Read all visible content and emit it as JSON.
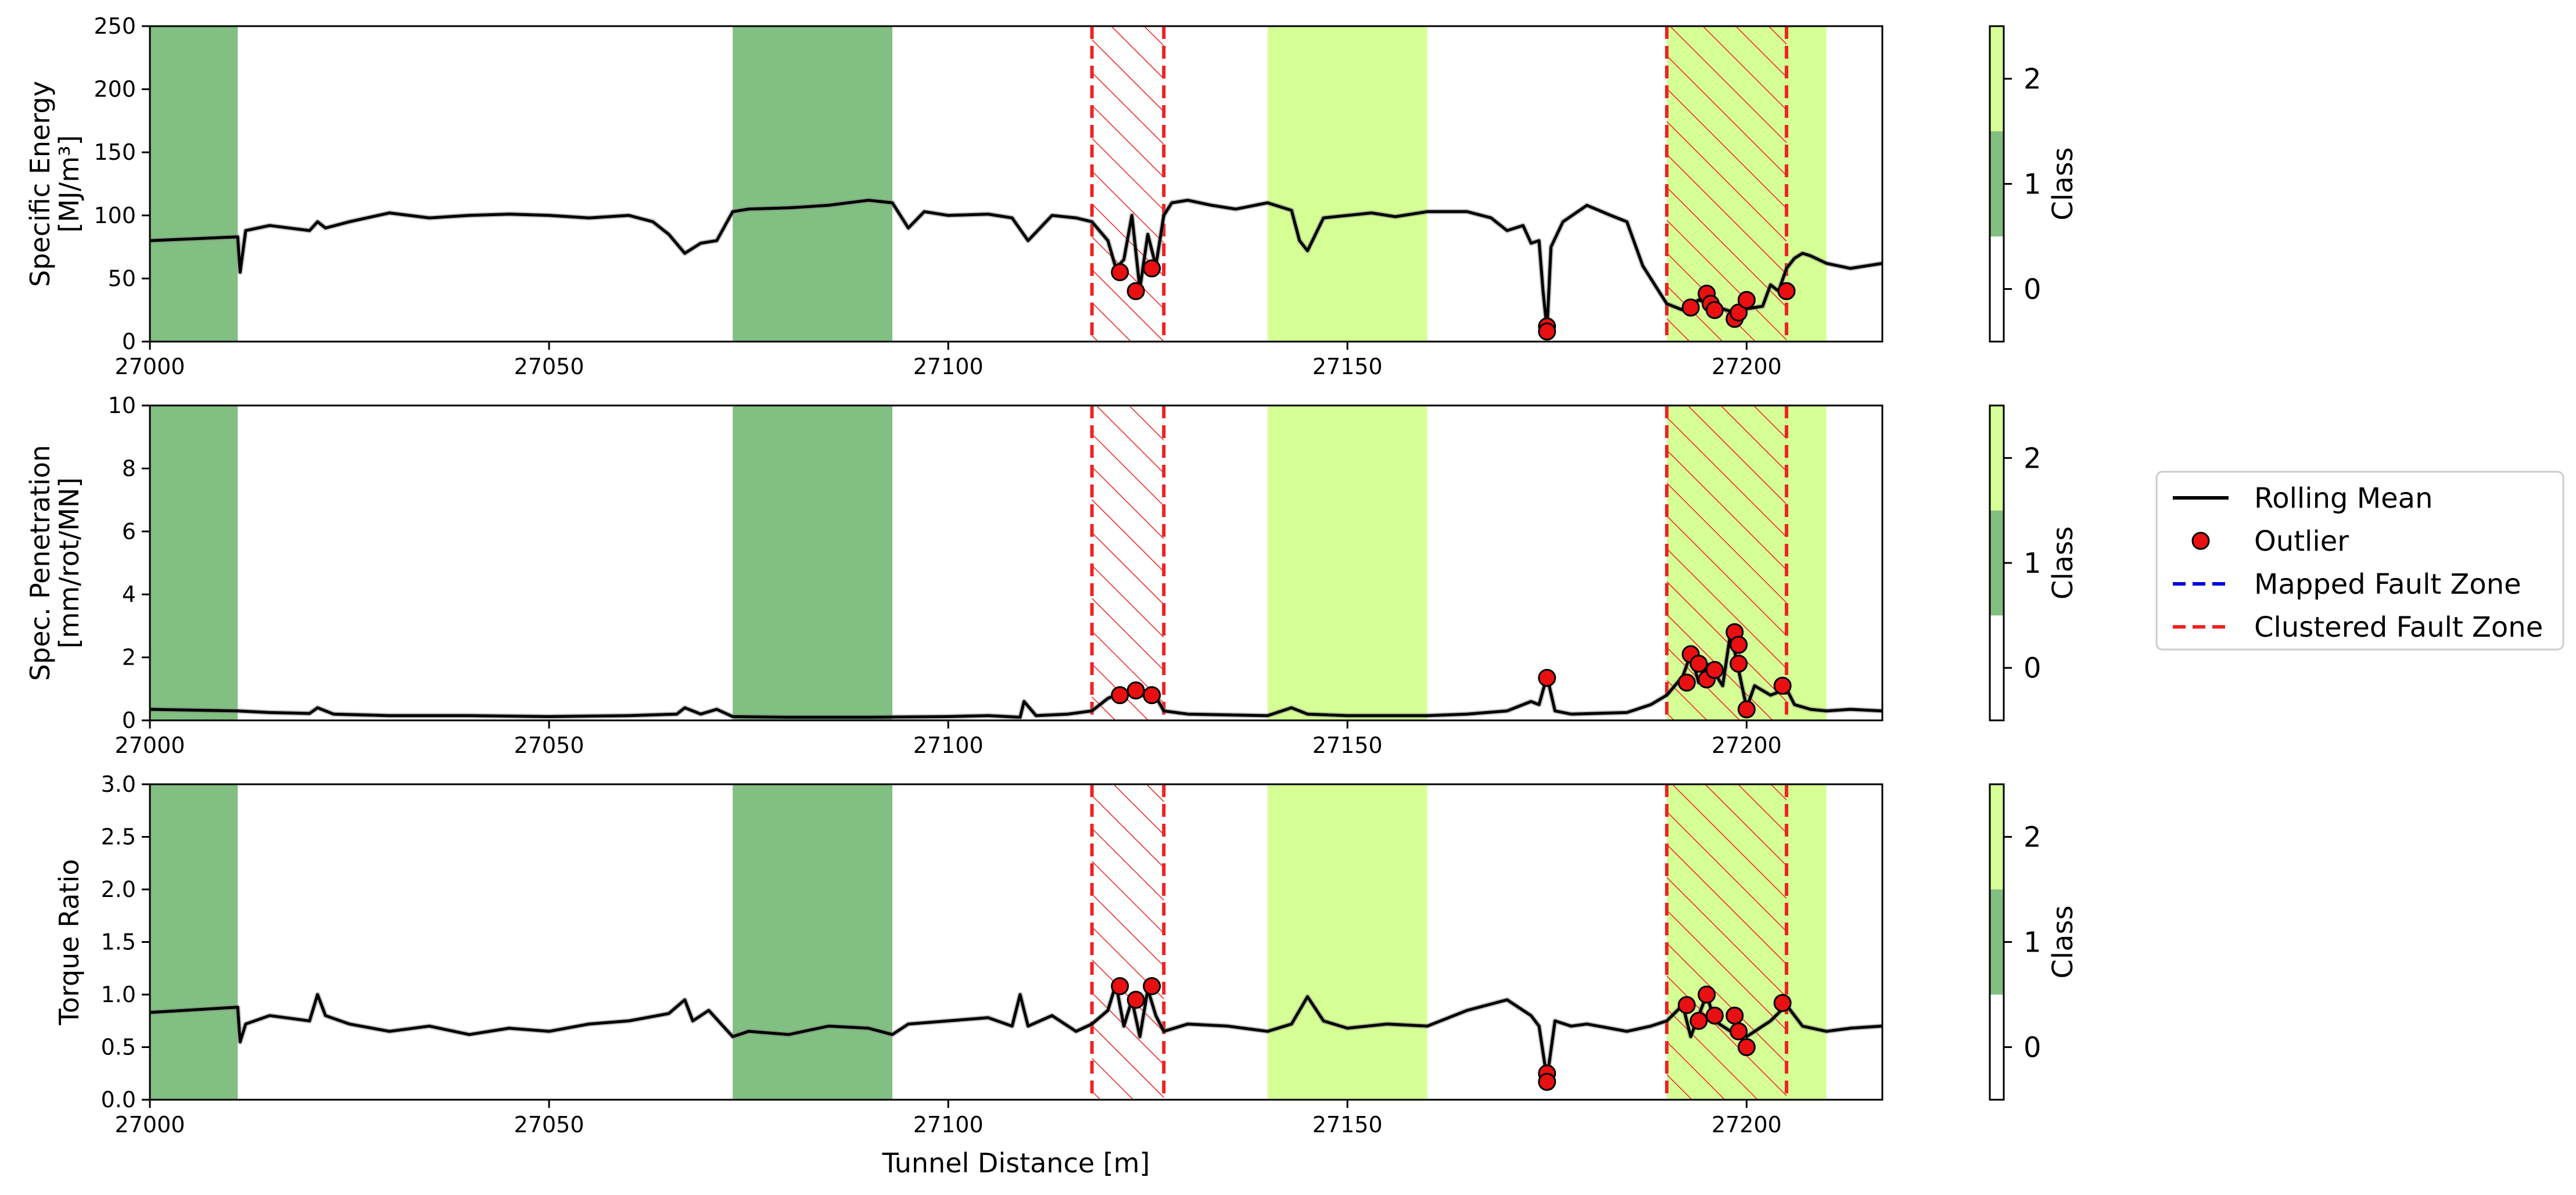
{
  "chart_data": [
    {
      "type": "line",
      "ylabel": "Specific Energy [MJ/m³]",
      "xlabel": "",
      "xlim": [
        27000,
        27217
      ],
      "ylim": [
        0,
        250
      ],
      "xticks": [
        "27000",
        "27050",
        "27100",
        "27150",
        "27200"
      ],
      "yticks": [
        "0",
        "50",
        "100",
        "150",
        "200",
        "250"
      ],
      "series": [
        {
          "name": "Rolling Mean",
          "x": [
            27000,
            27011,
            27011.3,
            27012,
            27015,
            27020,
            27021,
            27022,
            27025,
            27030,
            27035,
            27040,
            27045,
            27050,
            27055,
            27060,
            27063,
            27065,
            27067,
            27069,
            27071,
            27073,
            27075,
            27080,
            27085,
            27090,
            27093,
            27095,
            27097,
            27100,
            27105,
            27108,
            27110,
            27113,
            27116,
            27118,
            27120,
            27121,
            27122,
            27123,
            27124,
            27125,
            27126,
            27127,
            27128,
            27130,
            27133,
            27136,
            27140,
            27143,
            27144,
            27145,
            27147,
            27150,
            27153,
            27156,
            27160,
            27165,
            27168,
            27170,
            27172,
            27173,
            27174,
            27174.5,
            27175,
            27175.5,
            27177,
            27180,
            27183,
            27185,
            27187,
            27189,
            27190,
            27192,
            27194,
            27196,
            27198,
            27200,
            27202,
            27203,
            27204,
            27205,
            27206,
            27207,
            27208,
            27210,
            27213,
            27217
          ],
          "values": [
            80,
            83,
            55,
            88,
            92,
            88,
            95,
            90,
            95,
            102,
            98,
            100,
            101,
            100,
            98,
            100,
            95,
            85,
            70,
            78,
            80,
            103,
            105,
            106,
            108,
            112,
            110,
            90,
            103,
            100,
            101,
            98,
            80,
            100,
            98,
            95,
            80,
            58,
            65,
            100,
            42,
            85,
            60,
            100,
            110,
            112,
            108,
            105,
            110,
            104,
            80,
            72,
            98,
            100,
            102,
            99,
            103,
            103,
            98,
            88,
            92,
            78,
            80,
            40,
            10,
            75,
            95,
            108,
            100,
            95,
            60,
            40,
            30,
            25,
            33,
            28,
            24,
            26,
            28,
            45,
            40,
            58,
            66,
            70,
            68,
            62,
            58,
            62
          ]
        }
      ],
      "outliers": {
        "name": "Outlier",
        "x": [
          27121.5,
          27123.5,
          27125.5,
          27175,
          27175,
          27193,
          27195,
          27195.5,
          27196,
          27198.5,
          27199,
          27200,
          27205
        ],
        "values": [
          55,
          40,
          58,
          12,
          8,
          27,
          38,
          30,
          25,
          18,
          23,
          33,
          40
        ]
      }
    },
    {
      "type": "line",
      "ylabel": "Spec. Penetration [mm/rot/MN]",
      "xlabel": "",
      "xlim": [
        27000,
        27217
      ],
      "ylim": [
        0,
        10
      ],
      "xticks": [
        "27000",
        "27050",
        "27100",
        "27150",
        "27200"
      ],
      "yticks": [
        "0",
        "2",
        "4",
        "6",
        "8",
        "10"
      ],
      "series": [
        {
          "name": "Rolling Mean",
          "x": [
            27000,
            27011,
            27015,
            27020,
            27021,
            27023,
            27030,
            27040,
            27050,
            27060,
            27066,
            27067,
            27069,
            27071,
            27073,
            27080,
            27090,
            27100,
            27105,
            27109,
            27109.5,
            27111,
            27115,
            27118,
            27120,
            27122,
            27124,
            27126,
            27127,
            27130,
            27140,
            27143,
            27145,
            27150,
            27160,
            27165,
            27170,
            27173,
            27174,
            27175,
            27176,
            27178,
            27185,
            27188,
            27190,
            27192,
            27193,
            27194,
            27195,
            27196,
            27197,
            27198,
            27199,
            27200,
            27201,
            27203,
            27205,
            27206,
            27208,
            27210,
            27213,
            27217
          ],
          "values": [
            0.35,
            0.3,
            0.25,
            0.22,
            0.4,
            0.2,
            0.15,
            0.15,
            0.12,
            0.15,
            0.2,
            0.4,
            0.2,
            0.35,
            0.12,
            0.1,
            0.1,
            0.12,
            0.15,
            0.1,
            0.6,
            0.15,
            0.2,
            0.3,
            0.7,
            0.9,
            0.8,
            0.75,
            0.3,
            0.2,
            0.15,
            0.4,
            0.2,
            0.15,
            0.15,
            0.2,
            0.3,
            0.6,
            0.5,
            1.4,
            0.3,
            0.2,
            0.25,
            0.5,
            0.8,
            1.4,
            2.1,
            1.2,
            1.8,
            1.5,
            1.1,
            2.8,
            1.6,
            0.4,
            1.1,
            0.8,
            1.0,
            0.5,
            0.35,
            0.3,
            0.35,
            0.3
          ]
        }
      ],
      "outliers": {
        "name": "Outlier",
        "x": [
          27121.5,
          27123.5,
          27125.5,
          27175,
          27192.5,
          27193,
          27194,
          27195,
          27196,
          27198.5,
          27199,
          27199,
          27200,
          27204.5
        ],
        "values": [
          0.8,
          0.95,
          0.8,
          1.35,
          1.2,
          2.1,
          1.8,
          1.3,
          1.6,
          2.8,
          2.4,
          1.8,
          0.35,
          1.1
        ]
      }
    },
    {
      "type": "line",
      "ylabel": "Torque Ratio",
      "xlabel": "Tunnel Distance [m]",
      "xlim": [
        27000,
        27217
      ],
      "ylim": [
        0,
        3
      ],
      "xticks": [
        "27000",
        "27050",
        "27100",
        "27150",
        "27200"
      ],
      "yticks": [
        "0.0",
        "0.5",
        "1.0",
        "1.5",
        "2.0",
        "2.5",
        "3.0"
      ],
      "series": [
        {
          "name": "Rolling Mean",
          "x": [
            27000,
            27011,
            27011.3,
            27012,
            27015,
            27020,
            27021,
            27022,
            27025,
            27030,
            27035,
            27040,
            27045,
            27050,
            27055,
            27060,
            27065,
            27067,
            27068,
            27070,
            27073,
            27075,
            27080,
            27085,
            27090,
            27093,
            27095,
            27100,
            27105,
            27108,
            27109,
            27110,
            27113,
            27116,
            27118,
            27120,
            27121,
            27122,
            27123,
            27124,
            27125,
            27126,
            27127,
            27130,
            27135,
            27140,
            27143,
            27145,
            27147,
            27150,
            27155,
            27160,
            27165,
            27170,
            27173,
            27174,
            27175,
            27176,
            27178,
            27180,
            27185,
            27188,
            27190,
            27192,
            27193,
            27195,
            27196,
            27198,
            27199,
            27200,
            27203,
            27205,
            27207,
            27210,
            27213,
            27217
          ],
          "values": [
            0.83,
            0.88,
            0.55,
            0.72,
            0.8,
            0.75,
            1.0,
            0.8,
            0.72,
            0.65,
            0.7,
            0.62,
            0.68,
            0.65,
            0.72,
            0.75,
            0.82,
            0.95,
            0.75,
            0.85,
            0.6,
            0.65,
            0.62,
            0.7,
            0.68,
            0.62,
            0.72,
            0.75,
            0.78,
            0.7,
            1.0,
            0.7,
            0.8,
            0.65,
            0.72,
            0.85,
            1.1,
            0.7,
            0.95,
            0.6,
            1.05,
            0.8,
            0.65,
            0.72,
            0.7,
            0.65,
            0.72,
            0.98,
            0.75,
            0.68,
            0.72,
            0.7,
            0.85,
            0.95,
            0.8,
            0.7,
            0.2,
            0.75,
            0.7,
            0.72,
            0.65,
            0.7,
            0.75,
            0.9,
            0.6,
            1.0,
            0.75,
            0.65,
            0.7,
            0.6,
            0.75,
            0.9,
            0.7,
            0.65,
            0.68,
            0.7
          ]
        }
      ],
      "outliers": {
        "name": "Outlier",
        "x": [
          27121.5,
          27123.5,
          27125.5,
          27175,
          27175,
          27192.5,
          27194,
          27195,
          27196,
          27198.5,
          27199,
          27200,
          27204.5
        ],
        "values": [
          1.08,
          0.95,
          1.08,
          0.25,
          0.17,
          0.9,
          0.75,
          1.0,
          0.8,
          0.8,
          0.65,
          0.5,
          0.92
        ]
      }
    }
  ],
  "zones": {
    "class_bands": [
      {
        "class": 1,
        "start": 27000,
        "end": 27011
      },
      {
        "class": 1,
        "start": 27073,
        "end": 27093
      },
      {
        "class": 2,
        "start": 27140,
        "end": 27160
      },
      {
        "class": 2,
        "start": 27190,
        "end": 27210
      }
    ],
    "clustered_fault_zones": [
      {
        "start": 27118,
        "end": 27127
      },
      {
        "start": 27190,
        "end": 27205
      }
    ]
  },
  "colorbar": {
    "label": "Class",
    "ticks": [
      "0",
      "1",
      "2"
    ],
    "colors": [
      "#ffffff",
      "#82bf82",
      "#d5ff95"
    ]
  },
  "legend": {
    "position": "right",
    "entries": [
      {
        "label": "Rolling Mean",
        "kind": "line",
        "color": "#000000"
      },
      {
        "label": "Outlier",
        "kind": "marker",
        "color": "#e81010"
      },
      {
        "label": "Mapped Fault Zone",
        "kind": "dashed",
        "color": "#0000dd"
      },
      {
        "label": "Clustered Fault Zone",
        "kind": "dashed",
        "color": "#ee2222"
      }
    ]
  }
}
